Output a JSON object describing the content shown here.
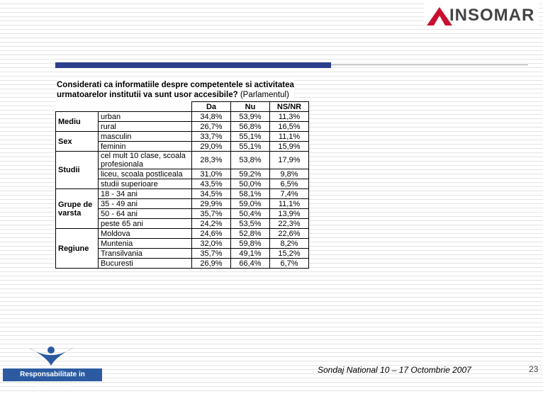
{
  "logo": {
    "name": "INSOMAR"
  },
  "question": {
    "bold": [
      "Considerati ca  informatiile despre competentele si activitatea",
      "urmatoarelor institutii va sunt usor accesibile?"
    ],
    "normal": "(Parlamentul)"
  },
  "table": {
    "header": [
      "Da",
      "Nu",
      "NS/NR"
    ],
    "groups": [
      {
        "label": "Mediu",
        "rows": [
          [
            "urban",
            "34,8%",
            "53,9%",
            "11,3%"
          ],
          [
            "rural",
            "26,7%",
            "56,8%",
            "16,5%"
          ]
        ]
      },
      {
        "label": "Sex",
        "rows": [
          [
            "masculin",
            "33,7%",
            "55,1%",
            "11,1%"
          ],
          [
            "feminin",
            "29,0%",
            "55,1%",
            "15,9%"
          ]
        ]
      },
      {
        "label": "Studii",
        "rows": [
          [
            "cel mult 10 clase, scoala profesionala",
            "28,3%",
            "53,8%",
            "17,9%"
          ],
          [
            "liceu, scoala postliceala",
            "31,0%",
            "59,2%",
            "9,8%"
          ],
          [
            "studii superioare",
            "43,5%",
            "50,0%",
            "6,5%"
          ]
        ]
      },
      {
        "label": "Grupe de varsta",
        "rows": [
          [
            "18 - 34 ani",
            "34,5%",
            "58,1%",
            "7,4%"
          ],
          [
            "35 - 49 ani",
            "29,9%",
            "59,0%",
            "11,1%"
          ],
          [
            "50 - 64 ani",
            "35,7%",
            "50,4%",
            "13,9%"
          ],
          [
            "peste 65 ani",
            "24,2%",
            "53,5%",
            "22,3%"
          ]
        ]
      },
      {
        "label": "Regiune",
        "rows": [
          [
            "Moldova",
            "24,6%",
            "52,8%",
            "22,6%"
          ],
          [
            "Muntenia",
            "32,0%",
            "59,8%",
            "8,2%"
          ],
          [
            "Transilvania",
            "35,7%",
            "49,1%",
            "15,2%"
          ],
          [
            "Bucuresti",
            "26,9%",
            "66,4%",
            "6,7%"
          ]
        ]
      }
    ]
  },
  "footer": {
    "org": "Responsabilitate in Democratie",
    "survey": "Sondaj National 10 – 17 Octombrie  2007",
    "page": "23"
  }
}
